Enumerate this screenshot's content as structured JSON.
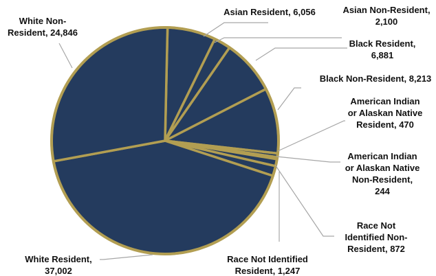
{
  "chart_data": {
    "type": "pie",
    "title": "",
    "slices": [
      {
        "label_lines": [
          "Asian Resident, 6,056"
        ],
        "category": "Asian Resident",
        "value": 6056
      },
      {
        "label_lines": [
          "Asian Non-Resident,",
          "2,100"
        ],
        "category": "Asian Non-Resident",
        "value": 2100
      },
      {
        "label_lines": [
          "Black Resident,",
          "6,881"
        ],
        "category": "Black Resident",
        "value": 6881
      },
      {
        "label_lines": [
          "Black Non-Resident, 8,213"
        ],
        "category": "Black Non-Resident",
        "value": 8213
      },
      {
        "label_lines": [
          "American Indian",
          "or Alaskan Native",
          "Resident, 470"
        ],
        "category": "American Indian or Alaskan Native Resident",
        "value": 470
      },
      {
        "label_lines": [
          "American Indian",
          "or Alaskan Native",
          "Non-Resident,",
          "244"
        ],
        "category": "American Indian or Alaskan Native Non-Resident",
        "value": 244
      },
      {
        "label_lines": [
          "Race Not",
          "Identified Non-",
          "Resident, 872"
        ],
        "category": "Race Not Identified Non-Resident",
        "value": 872
      },
      {
        "label_lines": [
          "Race Not Identified",
          "Resident, 1,247"
        ],
        "category": "Race Not Identified Resident",
        "value": 1247
      },
      {
        "label_lines": [
          "White Resident,",
          "37,002"
        ],
        "category": "White Resident",
        "value": 37002
      },
      {
        "label_lines": [
          "White Non-",
          "Resident, 24,846"
        ],
        "category": "White Non-Resident",
        "value": 24846
      }
    ],
    "colors": {
      "slice_fill": "#243b5e",
      "slice_border": "#b29e52",
      "leader_line": "#a6a6a6",
      "label_text": "#111111"
    }
  }
}
